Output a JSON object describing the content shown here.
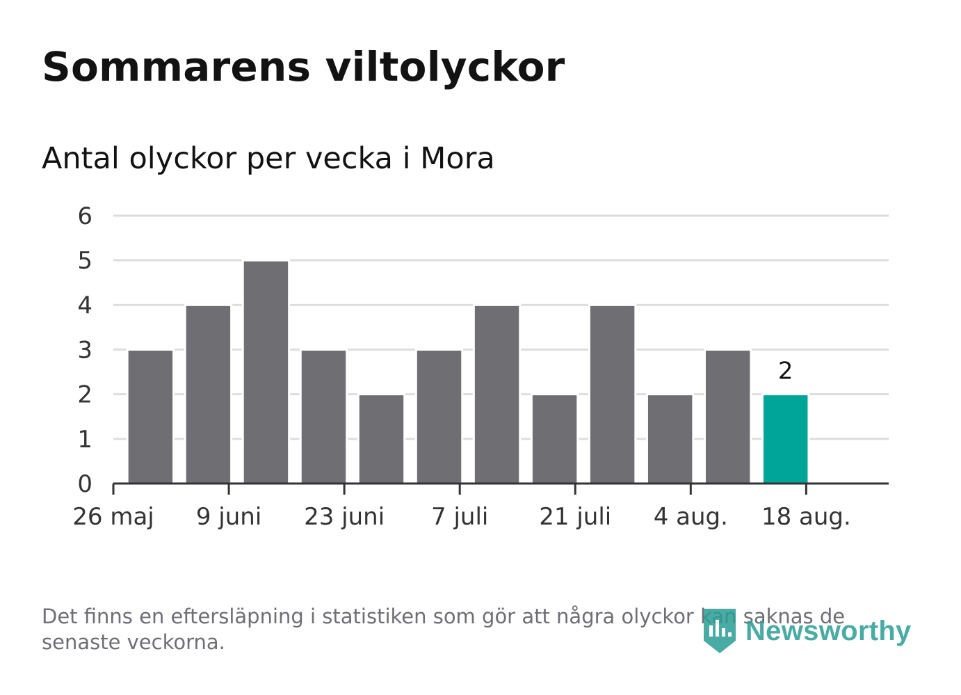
{
  "header": {
    "title": "Sommarens viltolyckor",
    "subtitle": "Antal olyckor per vecka i Mora"
  },
  "chart_data": {
    "type": "bar",
    "title": "Sommarens viltolyckor",
    "subtitle": "Antal olyckor per vecka i Mora",
    "xlabel": "",
    "ylabel": "",
    "ylim": [
      0,
      6
    ],
    "yticks": [
      0,
      1,
      2,
      3,
      4,
      5,
      6
    ],
    "x_start": "2024-05-26",
    "x_end": "2024-08-28",
    "xticks": [
      {
        "date": "2024-05-26",
        "label": "26 maj"
      },
      {
        "date": "2024-06-09",
        "label": "9 juni"
      },
      {
        "date": "2024-06-23",
        "label": "23 juni"
      },
      {
        "date": "2024-07-07",
        "label": "7 juli"
      },
      {
        "date": "2024-07-21",
        "label": "21 juli"
      },
      {
        "date": "2024-08-04",
        "label": "4 aug."
      },
      {
        "date": "2024-08-18",
        "label": "18 aug."
      }
    ],
    "bars": [
      {
        "week_start": "2024-05-27",
        "value": 3
      },
      {
        "week_start": "2024-06-03",
        "value": 4
      },
      {
        "week_start": "2024-06-10",
        "value": 5
      },
      {
        "week_start": "2024-06-17",
        "value": 3
      },
      {
        "week_start": "2024-06-24",
        "value": 2
      },
      {
        "week_start": "2024-07-01",
        "value": 3
      },
      {
        "week_start": "2024-07-08",
        "value": 4
      },
      {
        "week_start": "2024-07-15",
        "value": 2
      },
      {
        "week_start": "2024-07-22",
        "value": 4
      },
      {
        "week_start": "2024-07-29",
        "value": 2
      },
      {
        "week_start": "2024-08-05",
        "value": 3
      },
      {
        "week_start": "2024-08-12",
        "value": 2,
        "highlight": true,
        "label": "2"
      }
    ],
    "grid": true,
    "colors": {
      "bar": "#6f6e73",
      "highlight": "#00a59a",
      "grid": "#dddddd",
      "axis": "#333333"
    }
  },
  "footnote": "Det finns en eftersläpning i statistiken som gör att några olyckor kan saknas de senaste veckorna.",
  "logo": {
    "text": "Newsworthy",
    "icon": "newsworthy-logo-icon",
    "color": "#2a9d95"
  }
}
